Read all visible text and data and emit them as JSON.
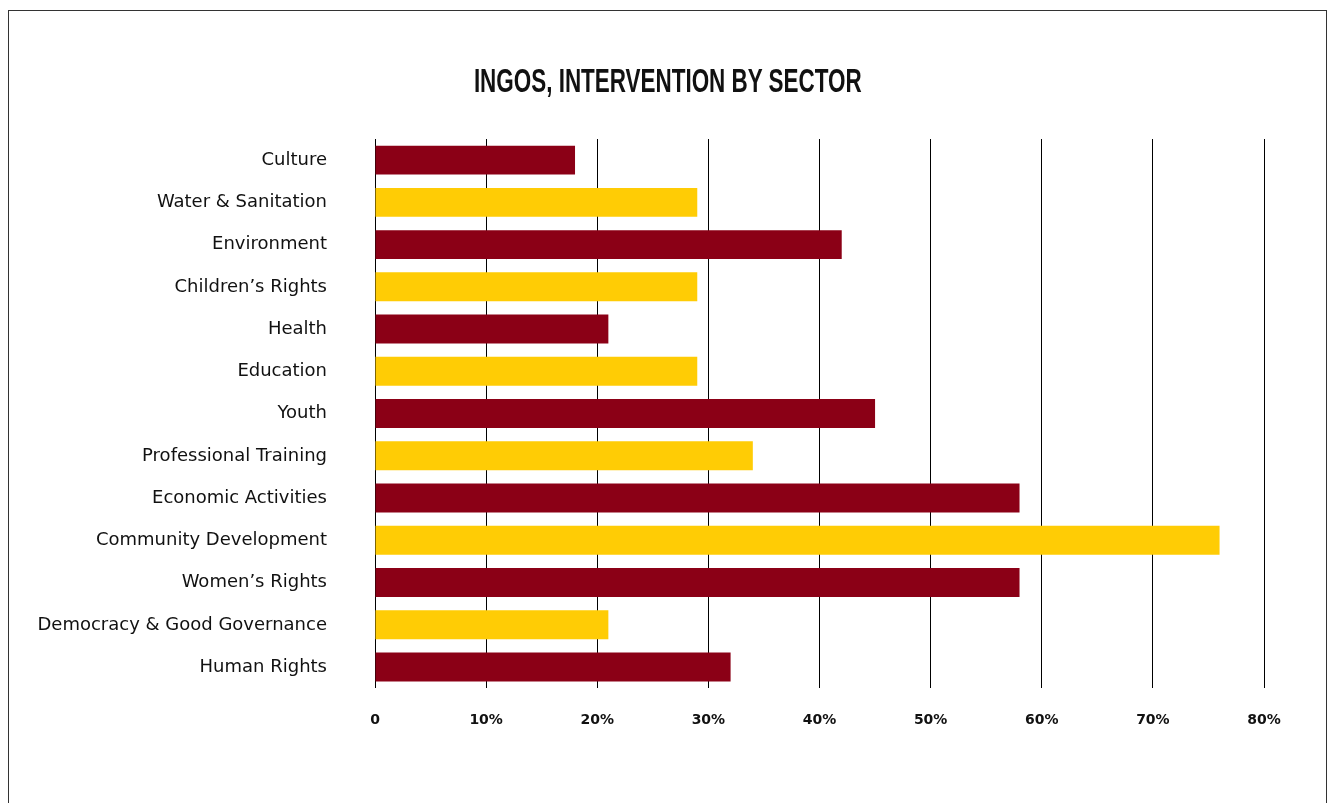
{
  "chart_data": {
    "type": "bar",
    "orientation": "horizontal",
    "title": "INGOS, INTERVENTION BY SECTOR",
    "categories": [
      "Culture",
      "Water & Sanitation",
      "Environment",
      "Children’s Rights",
      "Health",
      "Education",
      "Youth",
      "Professional Training",
      "Economic Activities",
      "Community Development",
      "Women’s Rights",
      "Democracy & Good Governance",
      "Human Rights"
    ],
    "values": [
      18,
      29,
      42,
      29,
      21,
      29,
      45,
      34,
      58,
      76,
      58,
      21,
      32
    ],
    "colors": [
      "#8b0016",
      "#ffcc05",
      "#8b0016",
      "#ffcc05",
      "#8b0016",
      "#ffcc05",
      "#8b0016",
      "#ffcc05",
      "#8b0016",
      "#ffcc05",
      "#8b0016",
      "#ffcc05",
      "#8b0016"
    ],
    "xlim": [
      0,
      80
    ],
    "xticks": [
      0,
      {
        "value": 10,
        "label": "10%"
      },
      {
        "value": 20,
        "label": "20%"
      },
      {
        "value": 30,
        "label": "30%"
      },
      {
        "value": 40,
        "label": "40%"
      },
      {
        "value": 50,
        "label": "50%"
      },
      {
        "value": 60,
        "label": "60%"
      },
      {
        "value": 70,
        "label": "70%"
      },
      {
        "value": 80,
        "label": "80%"
      }
    ],
    "grid": "x"
  }
}
